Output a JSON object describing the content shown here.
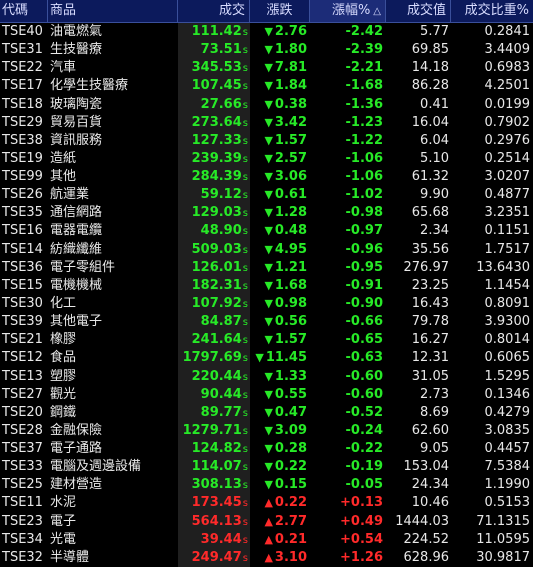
{
  "headers": [
    "代碼",
    "商品",
    "成交",
    "漲跌",
    "漲幅%",
    "成交值",
    "成交比重%"
  ],
  "sort_indicator": "△",
  "price_suffix": "s",
  "colors": {
    "up": "#ff2a2a",
    "down": "#27ea27",
    "header_bg": "#0c1a5c"
  },
  "rows": [
    {
      "code": "TSE40",
      "name": "油電燃氣",
      "price": "111.42",
      "change": "2.76",
      "pct": "-2.42",
      "value": "5.77",
      "share": "0.2841",
      "dir": "down"
    },
    {
      "code": "TSE31",
      "name": "生技醫療",
      "price": "73.51",
      "change": "1.80",
      "pct": "-2.39",
      "value": "69.85",
      "share": "3.4409",
      "dir": "down"
    },
    {
      "code": "TSE22",
      "name": "汽車",
      "price": "345.53",
      "change": "7.81",
      "pct": "-2.21",
      "value": "14.18",
      "share": "0.6983",
      "dir": "down"
    },
    {
      "code": "TSE17",
      "name": "化學生技醫療",
      "price": "107.45",
      "change": "1.84",
      "pct": "-1.68",
      "value": "86.28",
      "share": "4.2501",
      "dir": "down"
    },
    {
      "code": "TSE18",
      "name": "玻璃陶瓷",
      "price": "27.66",
      "change": "0.38",
      "pct": "-1.36",
      "value": "0.41",
      "share": "0.0199",
      "dir": "down"
    },
    {
      "code": "TSE29",
      "name": "貿易百貨",
      "price": "273.64",
      "change": "3.42",
      "pct": "-1.23",
      "value": "16.04",
      "share": "0.7902",
      "dir": "down"
    },
    {
      "code": "TSE38",
      "name": "資訊服務",
      "price": "127.33",
      "change": "1.57",
      "pct": "-1.22",
      "value": "6.04",
      "share": "0.2976",
      "dir": "down"
    },
    {
      "code": "TSE19",
      "name": "造紙",
      "price": "239.39",
      "change": "2.57",
      "pct": "-1.06",
      "value": "5.10",
      "share": "0.2514",
      "dir": "down"
    },
    {
      "code": "TSE99",
      "name": "其他",
      "price": "284.39",
      "change": "3.06",
      "pct": "-1.06",
      "value": "61.32",
      "share": "3.0207",
      "dir": "down"
    },
    {
      "code": "TSE26",
      "name": "航運業",
      "price": "59.12",
      "change": "0.61",
      "pct": "-1.02",
      "value": "9.90",
      "share": "0.4877",
      "dir": "down"
    },
    {
      "code": "TSE35",
      "name": "通信網路",
      "price": "129.03",
      "change": "1.28",
      "pct": "-0.98",
      "value": "65.68",
      "share": "3.2351",
      "dir": "down"
    },
    {
      "code": "TSE16",
      "name": "電器電纜",
      "price": "48.90",
      "change": "0.48",
      "pct": "-0.97",
      "value": "2.34",
      "share": "0.1151",
      "dir": "down"
    },
    {
      "code": "TSE14",
      "name": "紡織纖維",
      "price": "509.03",
      "change": "4.95",
      "pct": "-0.96",
      "value": "35.56",
      "share": "1.7517",
      "dir": "down"
    },
    {
      "code": "TSE36",
      "name": "電子零組件",
      "price": "126.01",
      "change": "1.21",
      "pct": "-0.95",
      "value": "276.97",
      "share": "13.6430",
      "dir": "down"
    },
    {
      "code": "TSE15",
      "name": "電機機械",
      "price": "182.31",
      "change": "1.68",
      "pct": "-0.91",
      "value": "23.25",
      "share": "1.1454",
      "dir": "down"
    },
    {
      "code": "TSE30",
      "name": "化工",
      "price": "107.92",
      "change": "0.98",
      "pct": "-0.90",
      "value": "16.43",
      "share": "0.8091",
      "dir": "down"
    },
    {
      "code": "TSE39",
      "name": "其他電子",
      "price": "84.87",
      "change": "0.56",
      "pct": "-0.66",
      "value": "79.78",
      "share": "3.9300",
      "dir": "down"
    },
    {
      "code": "TSE21",
      "name": "橡膠",
      "price": "241.64",
      "change": "1.57",
      "pct": "-0.65",
      "value": "16.27",
      "share": "0.8014",
      "dir": "down"
    },
    {
      "code": "TSE12",
      "name": "食品",
      "price": "1797.69",
      "change": "11.45",
      "pct": "-0.63",
      "value": "12.31",
      "share": "0.6065",
      "dir": "down"
    },
    {
      "code": "TSE13",
      "name": "塑膠",
      "price": "220.44",
      "change": "1.33",
      "pct": "-0.60",
      "value": "31.05",
      "share": "1.5295",
      "dir": "down"
    },
    {
      "code": "TSE27",
      "name": "觀光",
      "price": "90.44",
      "change": "0.55",
      "pct": "-0.60",
      "value": "2.73",
      "share": "0.1346",
      "dir": "down"
    },
    {
      "code": "TSE20",
      "name": "鋼鐵",
      "price": "89.77",
      "change": "0.47",
      "pct": "-0.52",
      "value": "8.69",
      "share": "0.4279",
      "dir": "down"
    },
    {
      "code": "TSE28",
      "name": "金融保險",
      "price": "1279.71",
      "change": "3.09",
      "pct": "-0.24",
      "value": "62.60",
      "share": "3.0835",
      "dir": "down"
    },
    {
      "code": "TSE37",
      "name": "電子通路",
      "price": "124.82",
      "change": "0.28",
      "pct": "-0.22",
      "value": "9.05",
      "share": "0.4457",
      "dir": "down"
    },
    {
      "code": "TSE33",
      "name": "電腦及週邊設備",
      "price": "114.07",
      "change": "0.22",
      "pct": "-0.19",
      "value": "153.04",
      "share": "7.5384",
      "dir": "down"
    },
    {
      "code": "TSE25",
      "name": "建材營造",
      "price": "308.13",
      "change": "0.15",
      "pct": "-0.05",
      "value": "24.34",
      "share": "1.1990",
      "dir": "down"
    },
    {
      "code": "TSE11",
      "name": "水泥",
      "price": "173.45",
      "change": "0.22",
      "pct": "+0.13",
      "value": "10.46",
      "share": "0.5153",
      "dir": "up"
    },
    {
      "code": "TSE23",
      "name": "電子",
      "price": "564.13",
      "change": "2.77",
      "pct": "+0.49",
      "value": "1444.03",
      "share": "71.1315",
      "dir": "up"
    },
    {
      "code": "TSE34",
      "name": "光電",
      "price": "39.44",
      "change": "0.21",
      "pct": "+0.54",
      "value": "224.52",
      "share": "11.0595",
      "dir": "up"
    },
    {
      "code": "TSE32",
      "name": "半導體",
      "price": "249.47",
      "change": "3.10",
      "pct": "+1.26",
      "value": "628.96",
      "share": "30.9817",
      "dir": "up"
    }
  ]
}
